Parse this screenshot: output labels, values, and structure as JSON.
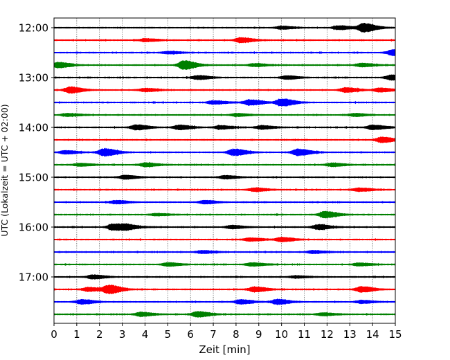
{
  "chart_data": {
    "type": "line",
    "title": "",
    "xlabel": "Zeit  [min]",
    "ylabel": "UTC (Lokalzeit = UTC + 02:00)",
    "xlim": [
      0,
      15
    ],
    "x_ticks": [
      "0",
      "1",
      "2",
      "3",
      "4",
      "5",
      "6",
      "7",
      "8",
      "9",
      "10",
      "11",
      "12",
      "13",
      "14",
      "15"
    ],
    "y_tick_labels": [
      "12:00",
      "13:00",
      "14:00",
      "15:00",
      "16:00",
      "17:00"
    ],
    "grid_x": true,
    "trace_colors": [
      "#000000",
      "#ff0000",
      "#0000ff",
      "#008000"
    ],
    "trace_start_times": [
      "12:00",
      "12:15",
      "12:30",
      "12:45",
      "13:00",
      "13:15",
      "13:30",
      "13:45",
      "14:00",
      "14:15",
      "14:30",
      "14:45",
      "15:00",
      "15:15",
      "15:30",
      "15:45",
      "16:00",
      "16:15",
      "16:30",
      "16:45",
      "17:00",
      "17:15",
      "17:30",
      "17:45"
    ],
    "traces": [
      {
        "start": "12:00",
        "events": [
          {
            "t": 10.0,
            "amp": 0.25
          },
          {
            "t": 12.5,
            "amp": 0.35
          },
          {
            "t": 13.6,
            "amp": 0.8
          }
        ]
      },
      {
        "start": "12:15",
        "events": [
          {
            "t": 4.0,
            "amp": 0.25
          },
          {
            "t": 8.2,
            "amp": 0.45
          }
        ]
      },
      {
        "start": "12:30",
        "events": [
          {
            "t": 5.0,
            "amp": 0.2
          },
          {
            "t": 14.9,
            "amp": 0.55
          }
        ]
      },
      {
        "start": "12:45",
        "events": [
          {
            "t": 0.2,
            "amp": 0.5
          },
          {
            "t": 5.7,
            "amp": 0.8
          },
          {
            "t": 8.8,
            "amp": 0.25
          },
          {
            "t": 13.5,
            "amp": 0.3
          }
        ]
      },
      {
        "start": "13:00",
        "events": [
          {
            "t": 6.3,
            "amp": 0.35
          },
          {
            "t": 10.2,
            "amp": 0.3
          },
          {
            "t": 14.8,
            "amp": 0.45
          }
        ]
      },
      {
        "start": "13:15",
        "events": [
          {
            "t": 0.7,
            "amp": 0.55
          },
          {
            "t": 4.0,
            "amp": 0.3
          },
          {
            "t": 12.8,
            "amp": 0.4
          },
          {
            "t": 14.3,
            "amp": 0.35
          }
        ]
      },
      {
        "start": "13:30",
        "events": [
          {
            "t": 7.0,
            "amp": 0.3
          },
          {
            "t": 8.6,
            "amp": 0.5
          },
          {
            "t": 10.0,
            "amp": 0.7
          }
        ]
      },
      {
        "start": "13:45",
        "events": [
          {
            "t": 0.6,
            "amp": 0.25
          },
          {
            "t": 8.0,
            "amp": 0.25
          },
          {
            "t": 13.2,
            "amp": 0.25
          }
        ]
      },
      {
        "start": "14:00",
        "events": [
          {
            "t": 3.6,
            "amp": 0.45
          },
          {
            "t": 5.5,
            "amp": 0.4
          },
          {
            "t": 7.3,
            "amp": 0.3
          },
          {
            "t": 9.1,
            "amp": 0.3
          },
          {
            "t": 14.0,
            "amp": 0.4
          }
        ]
      },
      {
        "start": "14:15",
        "events": [
          {
            "t": 14.4,
            "amp": 0.5
          }
        ]
      },
      {
        "start": "14:30",
        "events": [
          {
            "t": 0.5,
            "amp": 0.3
          },
          {
            "t": 2.2,
            "amp": 0.7
          },
          {
            "t": 7.9,
            "amp": 0.6
          },
          {
            "t": 10.7,
            "amp": 0.6
          }
        ]
      },
      {
        "start": "14:45",
        "events": [
          {
            "t": 1.1,
            "amp": 0.25
          },
          {
            "t": 4.0,
            "amp": 0.35
          },
          {
            "t": 12.2,
            "amp": 0.3
          }
        ]
      },
      {
        "start": "15:00",
        "events": [
          {
            "t": 3.1,
            "amp": 0.35
          },
          {
            "t": 7.5,
            "amp": 0.3
          }
        ]
      },
      {
        "start": "15:15",
        "events": [
          {
            "t": 8.8,
            "amp": 0.3
          },
          {
            "t": 13.4,
            "amp": 0.3
          }
        ]
      },
      {
        "start": "15:30",
        "events": [
          {
            "t": 2.7,
            "amp": 0.3
          },
          {
            "t": 6.6,
            "amp": 0.3
          }
        ]
      },
      {
        "start": "15:45",
        "events": [
          {
            "t": 11.9,
            "amp": 0.6
          },
          {
            "t": 4.5,
            "amp": 0.2
          }
        ]
      },
      {
        "start": "16:00",
        "events": [
          {
            "t": 2.6,
            "amp": 0.6
          },
          {
            "t": 3.2,
            "amp": 0.35
          },
          {
            "t": 7.8,
            "amp": 0.3
          },
          {
            "t": 11.6,
            "amp": 0.45
          }
        ]
      },
      {
        "start": "16:15",
        "events": [
          {
            "t": 8.6,
            "amp": 0.3
          },
          {
            "t": 10.0,
            "amp": 0.4
          }
        ]
      },
      {
        "start": "16:30",
        "events": [
          {
            "t": 6.5,
            "amp": 0.25
          },
          {
            "t": 11.4,
            "amp": 0.25
          }
        ]
      },
      {
        "start": "16:45",
        "events": [
          {
            "t": 5.0,
            "amp": 0.3
          },
          {
            "t": 8.7,
            "amp": 0.3
          },
          {
            "t": 13.4,
            "amp": 0.25
          }
        ]
      },
      {
        "start": "17:00",
        "events": [
          {
            "t": 1.7,
            "amp": 0.35
          },
          {
            "t": 10.6,
            "amp": 0.2
          }
        ]
      },
      {
        "start": "17:15",
        "events": [
          {
            "t": 1.5,
            "amp": 0.35
          },
          {
            "t": 2.4,
            "amp": 0.75
          },
          {
            "t": 8.8,
            "amp": 0.45
          },
          {
            "t": 13.5,
            "amp": 0.5
          }
        ]
      },
      {
        "start": "17:30",
        "events": [
          {
            "t": 1.2,
            "amp": 0.4
          },
          {
            "t": 8.2,
            "amp": 0.4
          },
          {
            "t": 9.8,
            "amp": 0.45
          },
          {
            "t": 13.5,
            "amp": 0.25
          }
        ]
      },
      {
        "start": "17:45",
        "events": [
          {
            "t": 3.8,
            "amp": 0.35
          },
          {
            "t": 6.3,
            "amp": 0.5
          },
          {
            "t": 11.8,
            "amp": 0.25
          }
        ]
      }
    ]
  }
}
